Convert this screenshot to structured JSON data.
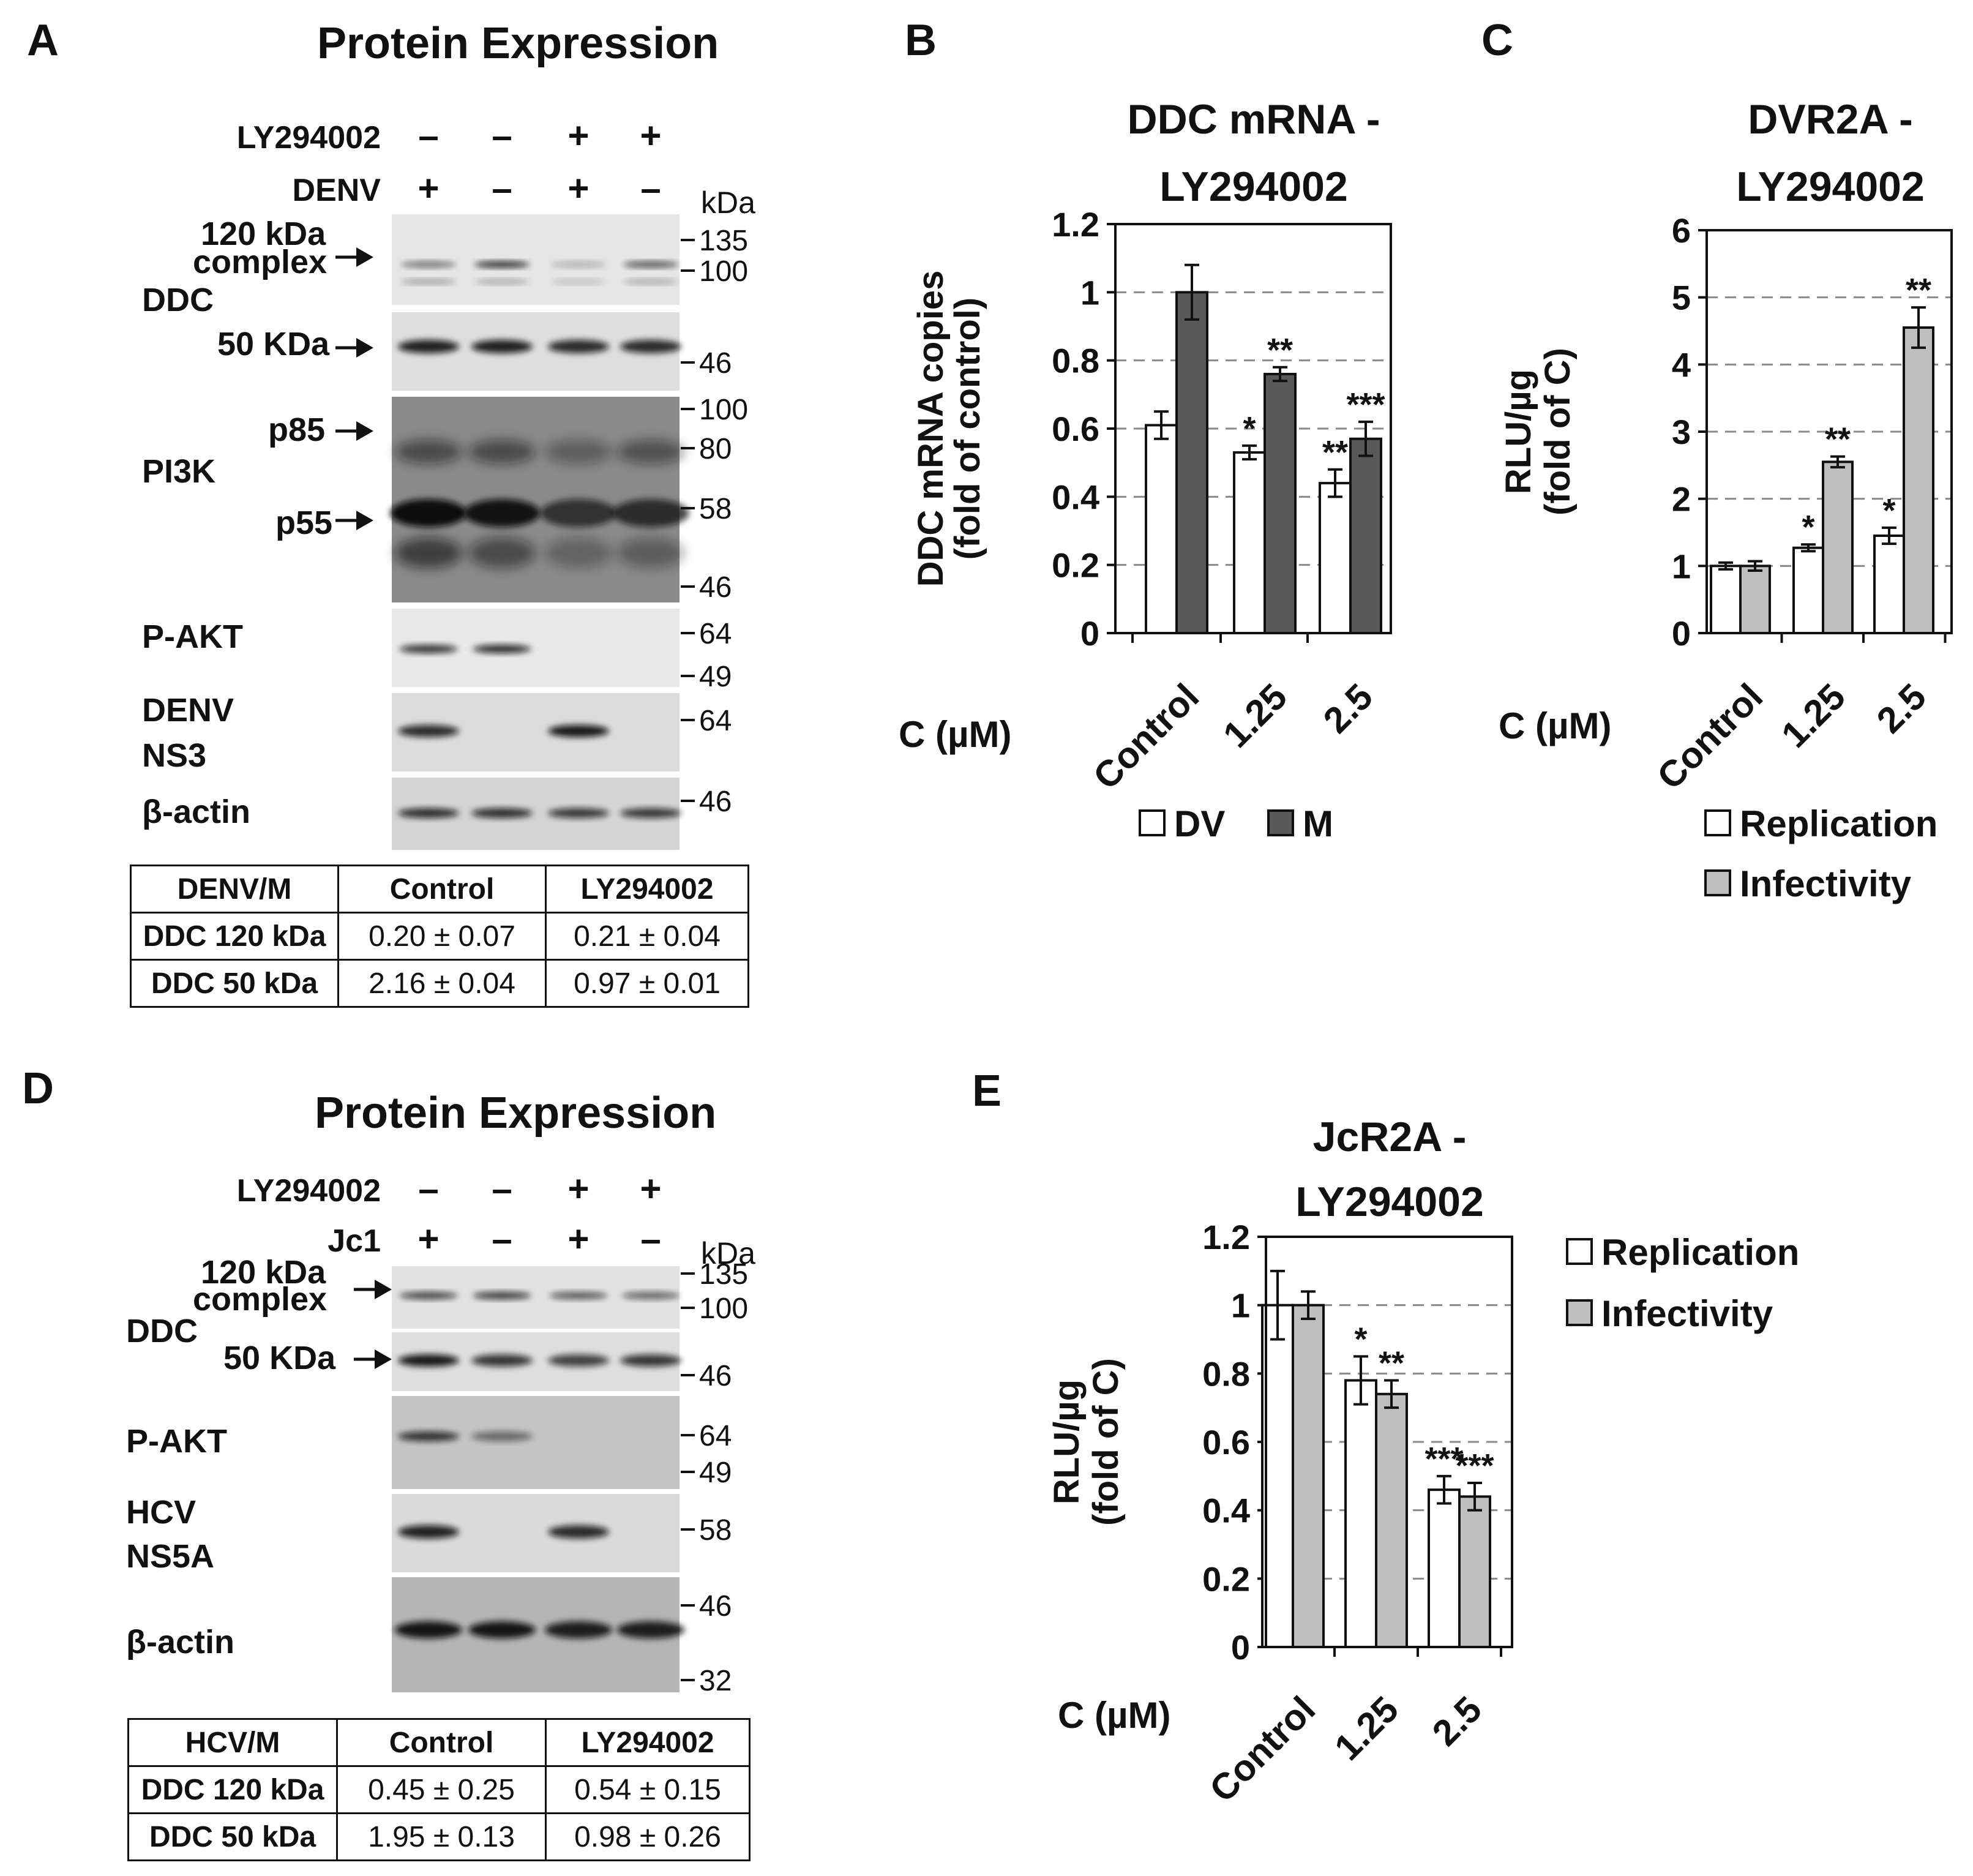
{
  "panels": [
    {
      "letter": "A",
      "title": "Protein Expression",
      "rows": [
        {
          "label": "LY294002",
          "signs": [
            "–",
            "–",
            "+",
            "+"
          ]
        },
        {
          "label": "DENV",
          "signs": [
            "+",
            "–",
            "+",
            "–"
          ]
        }
      ],
      "kda_unit": "kDa",
      "left_labels": [
        "120 kDa",
        "complex",
        "DDC",
        "50 KDa",
        "p85",
        "PI3K",
        "p55",
        "P-AKT",
        "DENV",
        "NS3",
        "β-actin"
      ],
      "markers": [
        "135",
        "100",
        "46",
        "100",
        "80",
        "58",
        "46",
        "64",
        "49",
        "64",
        "46"
      ],
      "table": {
        "header": [
          "DENV/M",
          "Control",
          "LY294002"
        ],
        "rows": [
          [
            "DDC 120 kDa",
            "0.20 ± 0.07",
            "0.21 ± 0.04"
          ],
          [
            "DDC 50 kDa",
            "2.16 ± 0.04",
            "0.97 ± 0.01"
          ]
        ]
      }
    },
    {
      "letter": "D",
      "title": "Protein Expression",
      "rows": [
        {
          "label": "LY294002",
          "signs": [
            "–",
            "–",
            "+",
            "+"
          ]
        },
        {
          "label": "Jc1",
          "signs": [
            "+",
            "–",
            "+",
            "–"
          ]
        }
      ],
      "kda_unit": "kDa",
      "left_labels": [
        "120 kDa",
        "complex",
        "DDC",
        "50 KDa",
        "P-AKT",
        "HCV",
        "NS5A",
        "β-actin"
      ],
      "markers": [
        "135",
        "100",
        "46",
        "64",
        "49",
        "58",
        "46",
        "32"
      ],
      "table": {
        "header": [
          "HCV/M",
          "Control",
          "LY294002"
        ],
        "rows": [
          [
            "DDC 120 kDa",
            "0.45 ± 0.25",
            "0.54 ± 0.15"
          ],
          [
            "DDC 50 kDa",
            "1.95 ± 0.13",
            "0.98 ± 0.26"
          ]
        ]
      }
    }
  ],
  "chart_data": [
    {
      "panel": "B",
      "type": "bar",
      "title": [
        "DDC mRNA -",
        "LY294002"
      ],
      "ylabel": [
        "DDC mRNA copies",
        "(fold of control)"
      ],
      "xlabel": "C (µM)",
      "categories": [
        "Control",
        "1.25",
        "2.5"
      ],
      "ylim": [
        0,
        1.2
      ],
      "yticks": [
        "0",
        "0.2",
        "0.4",
        "0.6",
        "0.8",
        "1",
        "1.2"
      ],
      "series": [
        {
          "name": "DV",
          "color": "#ffffff",
          "values": [
            0.61,
            0.53,
            0.44
          ],
          "errors": [
            0.04,
            0.02,
            0.04
          ],
          "sig": [
            "",
            "*",
            "**"
          ]
        },
        {
          "name": "M",
          "color": "#595959",
          "values": [
            1.0,
            0.76,
            0.57
          ],
          "errors": [
            0.08,
            0.02,
            0.05
          ],
          "sig": [
            "",
            "**",
            "***"
          ]
        }
      ],
      "legend": "bottom",
      "grid": "dashed"
    },
    {
      "panel": "C",
      "type": "bar",
      "title": [
        "DVR2A -",
        "LY294002"
      ],
      "ylabel": [
        "RLU/µg",
        "(fold of C)"
      ],
      "xlabel": "C (µM)",
      "categories": [
        "Control",
        "1.25",
        "2.5"
      ],
      "ylim": [
        0,
        6
      ],
      "yticks": [
        "0",
        "1",
        "2",
        "3",
        "4",
        "5",
        "6"
      ],
      "series": [
        {
          "name": "Replication",
          "color": "#ffffff",
          "values": [
            1.0,
            1.27,
            1.45
          ],
          "errors": [
            0.05,
            0.05,
            0.12
          ],
          "sig": [
            "",
            "*",
            "*"
          ]
        },
        {
          "name": "Infectivity",
          "color": "#bfbfbf",
          "values": [
            1.0,
            2.55,
            4.55
          ],
          "errors": [
            0.07,
            0.08,
            0.3
          ],
          "sig": [
            "",
            "**",
            "**"
          ]
        }
      ],
      "legend": "bottom",
      "grid": "dashed"
    },
    {
      "panel": "E",
      "type": "bar",
      "title": [
        "JcR2A -",
        "LY294002"
      ],
      "ylabel": [
        "RLU/µg",
        "(fold of C)"
      ],
      "xlabel": "C (µM)",
      "categories": [
        "Control",
        "1.25",
        "2.5"
      ],
      "ylim": [
        0,
        1.2
      ],
      "yticks": [
        "0",
        "0.2",
        "0.4",
        "0.6",
        "0.8",
        "1",
        "1.2"
      ],
      "series": [
        {
          "name": "Replication",
          "color": "#ffffff",
          "values": [
            1.0,
            0.78,
            0.46
          ],
          "errors": [
            0.1,
            0.07,
            0.04
          ],
          "sig": [
            "",
            "*",
            "***"
          ]
        },
        {
          "name": "Infectivity",
          "color": "#bfbfbf",
          "values": [
            1.0,
            0.74,
            0.44
          ],
          "errors": [
            0.04,
            0.04,
            0.04
          ],
          "sig": [
            "",
            "**",
            "***"
          ]
        }
      ],
      "legend": "right",
      "grid": "dashed"
    }
  ]
}
